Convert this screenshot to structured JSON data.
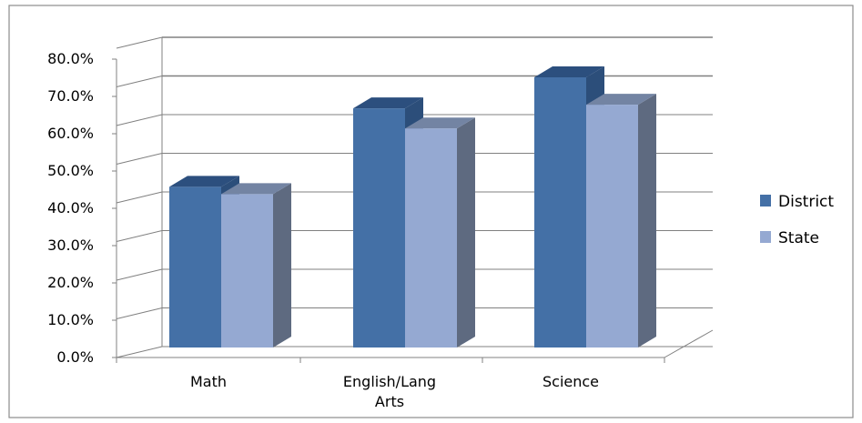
{
  "chart_data": {
    "type": "bar",
    "style": "3d-clustered-column",
    "categories": [
      "Math",
      "English/Lang Arts",
      "Science"
    ],
    "series": [
      {
        "name": "District",
        "values": [
          44.0,
          65.5,
          74.0
        ],
        "color": "#4470a6",
        "side_color": "#2c4e7a",
        "top_color": "#2c4f7e"
      },
      {
        "name": "State",
        "values": [
          42.0,
          60.0,
          66.5
        ],
        "color": "#95a9d2",
        "side_color": "#5e6a80",
        "top_color": "#7384a3"
      }
    ],
    "ylim": [
      0,
      80
    ],
    "y_ticks": [
      "0.0%",
      "10.0%",
      "20.0%",
      "30.0%",
      "40.0%",
      "50.0%",
      "60.0%",
      "70.0%",
      "80.0%"
    ],
    "grid": true,
    "legend_position": "right",
    "title": "",
    "xlabel": "",
    "ylabel": ""
  }
}
